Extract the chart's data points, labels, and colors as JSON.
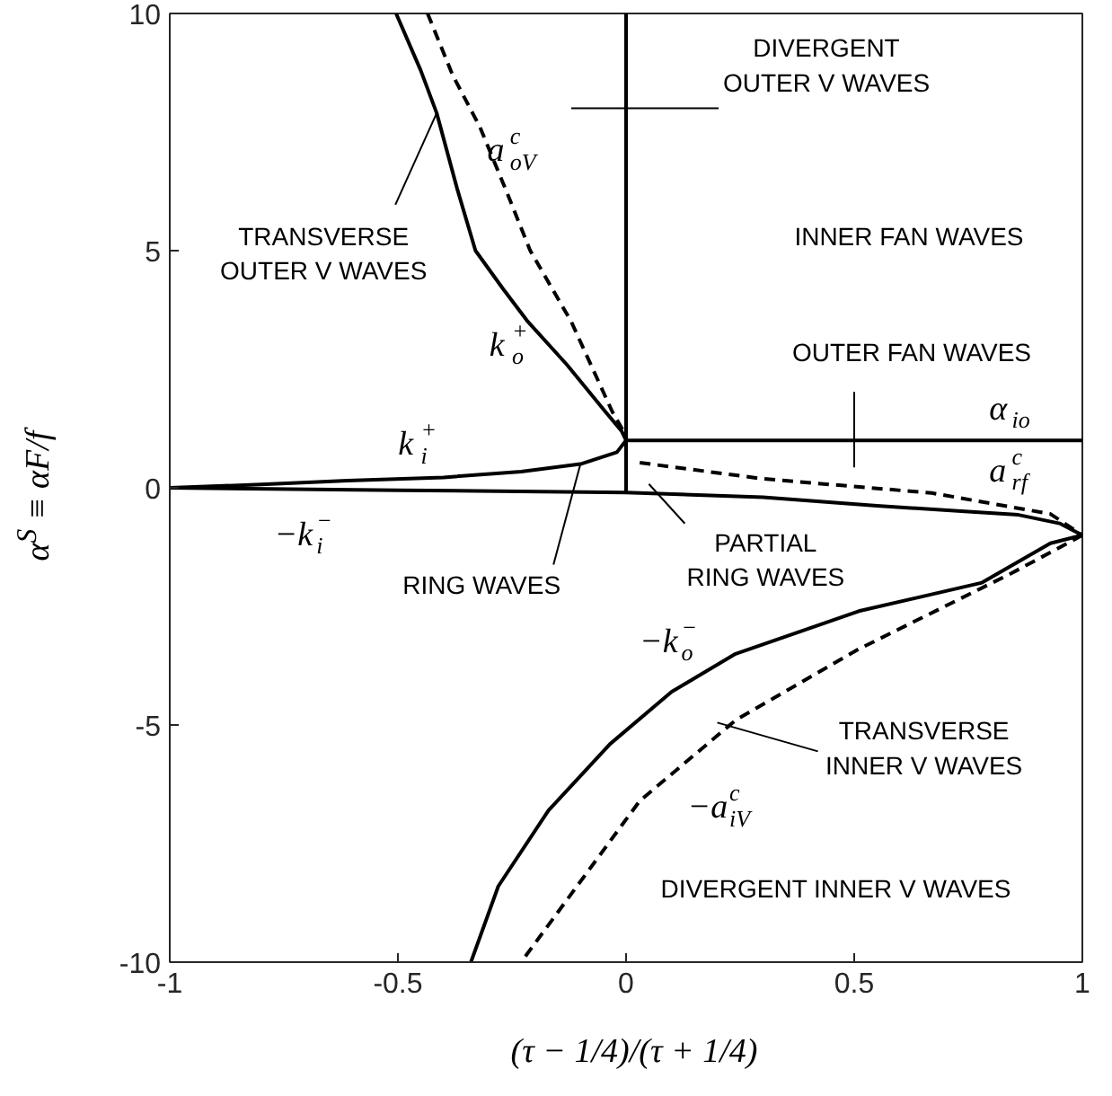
{
  "chart_data": {
    "type": "line",
    "xlabel": "(τ − 1/4)/(τ + 1/4)",
    "ylabel": "α$^{S}$ ≡ αF/f",
    "xlim": [
      -1,
      1
    ],
    "ylim": [
      -10,
      10
    ],
    "xticks": [
      -1,
      -0.5,
      0,
      0.5,
      1
    ],
    "yticks": [
      -10,
      -5,
      0,
      5,
      10
    ],
    "grid": false,
    "series": [
      {
        "color": "#000000",
        "line_style": "solid",
        "x": [
          -0.504,
          -0.45,
          -0.415,
          -0.37,
          -0.33,
          -0.27,
          -0.215,
          -0.13,
          -0.045,
          -0.01,
          0.0
        ],
        "values": [
          10,
          8.8,
          7.9,
          6.3,
          5,
          4.2,
          3.5,
          2.6,
          1.6,
          1.2,
          1.0
        ]
      },
      {
        "color": "#000000",
        "line_style": "solid",
        "x": [
          0.0,
          -0.02,
          -0.1,
          -0.23,
          -0.4,
          -0.61,
          -0.8,
          -1
        ],
        "values": [
          1.0,
          0.75,
          0.5,
          0.34,
          0.22,
          0.15,
          0.07,
          0
        ]
      },
      {
        "color": "#000000",
        "line_style": "dashed",
        "x": [
          -0.435,
          -0.38,
          -0.32,
          -0.26,
          -0.21,
          -0.12,
          -0.03,
          0.0
        ],
        "values": [
          10,
          8.7,
          7.6,
          6.2,
          5,
          3.5,
          1.6,
          1.1
        ]
      },
      {
        "color": "#000000",
        "line_style": "solid",
        "x": [
          -1,
          -0.5,
          0,
          0.3,
          0.55,
          0.75,
          0.86,
          0.95,
          1
        ],
        "values": [
          0,
          -0.05,
          -0.1,
          -0.2,
          -0.38,
          -0.5,
          -0.57,
          -0.75,
          -1
        ]
      },
      {
        "color": "#000000",
        "line_style": "solid",
        "x": [
          1,
          0.93,
          0.78,
          0.51,
          0.24,
          0.1,
          -0.035,
          -0.17,
          -0.28,
          -0.34
        ],
        "values": [
          -1,
          -1.17,
          -2.0,
          -2.6,
          -3.5,
          -4.3,
          -5.4,
          -6.8,
          -8.4,
          -10
        ]
      },
      {
        "color": "#000000",
        "line_style": "dashed",
        "x": [
          1,
          0.845,
          0.51,
          0.24,
          0.03,
          -0.1,
          -0.23
        ],
        "values": [
          -1,
          -1.8,
          -3.4,
          -4.9,
          -6.6,
          -8.3,
          -10
        ]
      },
      {
        "color": "#000000",
        "line_style": "dashed",
        "x": [
          0.03,
          0.3,
          0.67,
          0.93,
          1
        ],
        "values": [
          0.53,
          0.19,
          -0.11,
          -0.55,
          -1
        ]
      },
      {
        "color": "#000000",
        "line_style": "solid",
        "x": [
          0,
          1
        ],
        "values": [
          1,
          1
        ]
      },
      {
        "color": "#000000",
        "line_style": "solid",
        "x": [
          0,
          0
        ],
        "values": [
          -0.1,
          10
        ]
      }
    ],
    "annotations": [
      {
        "text": "TRANSVERSE\nOUTER V WAVES",
        "x": -0.415,
        "y": 7.9
      },
      "a$^{c}$$_{oV}$",
      "k$_{o}$$^{+}$",
      "k$_{i}$$^{+}$",
      "−k$_{i}$$^{−}$",
      {
        "text": "RING WAVES",
        "x": -0.1,
        "y": 0.5
      },
      {
        "text": "PARTIAL\nRING WAVES",
        "x": 0.05,
        "y": 0.08
      },
      "DIVERGENT\nOUTER V WAVES",
      "INNER FAN WAVES",
      {
        "text": "OUTER FAN WAVES",
        "x": 0.5,
        "y": 1
      },
      "α$_{io}$",
      "a$^{c}$$_{rf}$",
      "−k$_{o}$$^{−}$",
      {
        "text": "TRANSVERSE\nINNER V WAVES",
        "x": 0.2,
        "y": -4.95
      },
      "−a$^{c}$$_{iV}$",
      "DIVERGENT INNER V WAVES"
    ]
  }
}
